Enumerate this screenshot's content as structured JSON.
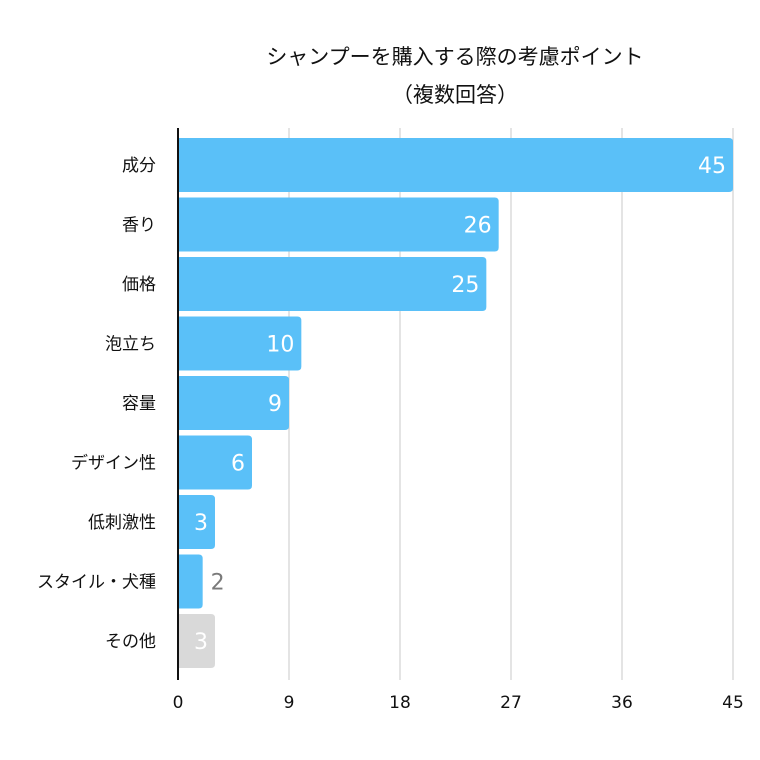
{
  "chart_data": {
    "type": "bar",
    "orientation": "horizontal",
    "title": [
      "シャンプーを購入する際の考慮ポイント",
      "（複数回答）"
    ],
    "categories": [
      "成分",
      "香り",
      "価格",
      "泡立ち",
      "容量",
      "デザイン性",
      "低刺激性",
      "スタイル・犬種",
      "その他"
    ],
    "values": [
      45,
      26,
      25,
      10,
      9,
      6,
      3,
      2,
      3
    ],
    "xlim": [
      0,
      45
    ],
    "xticks": [
      0,
      9,
      18,
      27,
      36,
      45
    ],
    "grid": true,
    "legend": "none",
    "colors": {
      "bar": "#5AC0F8",
      "other_bar": "#D9D9D9",
      "gridline": "#C8C8C8",
      "axis": "#111111",
      "inside_label": "#FFFFFF",
      "outside_label": "#7A7A7A"
    }
  }
}
